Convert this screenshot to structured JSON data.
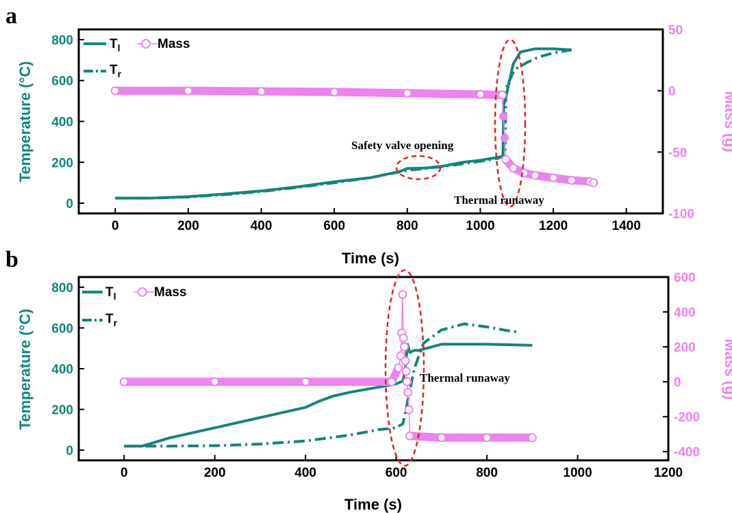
{
  "colors": {
    "temperature": "#12857c",
    "mass": "#ee82ee",
    "ellipse": "#e32020",
    "axis": "#000000"
  },
  "chart_data": [
    {
      "panel_label": "a",
      "type": "line",
      "xlabel": "Time (s)",
      "ylabel": "Temperature (°C)",
      "y2label": "Mass (g)",
      "xlim": [
        -100,
        1500
      ],
      "ylim": [
        -50,
        850
      ],
      "y2lim": [
        -100,
        50
      ],
      "x_ticks": [
        "0",
        "200",
        "400",
        "600",
        "800",
        "1000",
        "1200",
        "1400"
      ],
      "y_ticks": [
        "0",
        "200",
        "400",
        "600",
        "800"
      ],
      "y2_ticks": [
        "-100",
        "-50",
        "0",
        "50"
      ],
      "legend": {
        "placement": "top-left",
        "entries": [
          "T",
          "T",
          "Mass"
        ],
        "subscripts": [
          "l",
          "r",
          ""
        ]
      },
      "annotations": [
        "Safety valve opening",
        "Thermal runaway"
      ],
      "series": [
        {
          "name": "T_l",
          "axis": "left",
          "style": "solid",
          "x": [
            0,
            100,
            200,
            300,
            400,
            500,
            580,
            600,
            700,
            780,
            800,
            850,
            900,
            950,
            1000,
            1050,
            1062,
            1064,
            1070,
            1090,
            1110,
            1150,
            1200,
            1250
          ],
          "y": [
            25,
            25,
            32,
            45,
            60,
            80,
            100,
            105,
            125,
            155,
            170,
            172,
            182,
            200,
            210,
            225,
            230,
            480,
            520,
            680,
            740,
            755,
            755,
            750
          ]
        },
        {
          "name": "T_r",
          "axis": "left",
          "style": "dashdot",
          "x": [
            0,
            100,
            200,
            300,
            400,
            500,
            600,
            700,
            800,
            900,
            1000,
            1050,
            1068,
            1070,
            1090,
            1100,
            1130,
            1160,
            1200,
            1250
          ],
          "y": [
            25,
            25,
            30,
            42,
            57,
            77,
            100,
            125,
            160,
            180,
            205,
            220,
            240,
            560,
            640,
            660,
            690,
            715,
            735,
            750
          ]
        },
        {
          "name": "Mass",
          "axis": "right",
          "style": "markers",
          "x": [
            0,
            200,
            400,
            600,
            800,
            1000,
            1060,
            1070,
            1090,
            1120,
            1150,
            1200,
            1250,
            1300,
            1310
          ],
          "y": [
            0,
            0,
            -0.5,
            -1,
            -2,
            -3,
            -3.5,
            -56,
            -63,
            -67,
            -69,
            -71,
            -73,
            -74,
            -75
          ]
        }
      ]
    },
    {
      "panel_label": "b",
      "type": "line",
      "xlabel": "Time (s)",
      "ylabel": "Temperature (°C)",
      "y2label": "Mass (g)",
      "xlim": [
        -100,
        1200
      ],
      "ylim": [
        -50,
        850
      ],
      "y2lim": [
        -450,
        600
      ],
      "x_ticks": [
        "0",
        "200",
        "400",
        "600",
        "800",
        "1000",
        "1200"
      ],
      "y_ticks": [
        "0",
        "200",
        "400",
        "600",
        "800"
      ],
      "y2_ticks": [
        "-400",
        "-200",
        "0",
        "200",
        "400",
        "600"
      ],
      "legend": {
        "placement": "top-left",
        "entries": [
          "T",
          "T",
          "Mass"
        ],
        "subscripts": [
          "l",
          "r",
          ""
        ]
      },
      "annotations": [
        "Thermal runaway"
      ],
      "series": [
        {
          "name": "T_l",
          "axis": "left",
          "style": "solid",
          "x": [
            0,
            40,
            100,
            200,
            300,
            400,
            430,
            460,
            500,
            550,
            600,
            615,
            620,
            625,
            630,
            640,
            650,
            700,
            800,
            900
          ],
          "y": [
            20,
            20,
            60,
            110,
            160,
            210,
            240,
            265,
            285,
            305,
            325,
            340,
            400,
            520,
            480,
            490,
            490,
            520,
            520,
            515
          ]
        },
        {
          "name": "T_r",
          "axis": "left",
          "style": "dashdot",
          "x": [
            0,
            100,
            200,
            300,
            400,
            500,
            560,
            600,
            615,
            640,
            660,
            700,
            750,
            800,
            850,
            870
          ],
          "y": [
            20,
            20,
            22,
            30,
            45,
            75,
            100,
            110,
            130,
            400,
            525,
            590,
            620,
            605,
            585,
            580
          ]
        },
        {
          "name": "Mass",
          "axis": "right",
          "style": "markers",
          "x": [
            0,
            200,
            400,
            590,
            605,
            610,
            612,
            614,
            616,
            618,
            620,
            622,
            624,
            626,
            628,
            630,
            700,
            800,
            900
          ],
          "y": [
            0,
            0,
            0,
            0,
            80,
            150,
            280,
            500,
            250,
            200,
            120,
            60,
            0,
            -60,
            -160,
            -310,
            -320,
            -320,
            -320
          ]
        }
      ]
    }
  ]
}
